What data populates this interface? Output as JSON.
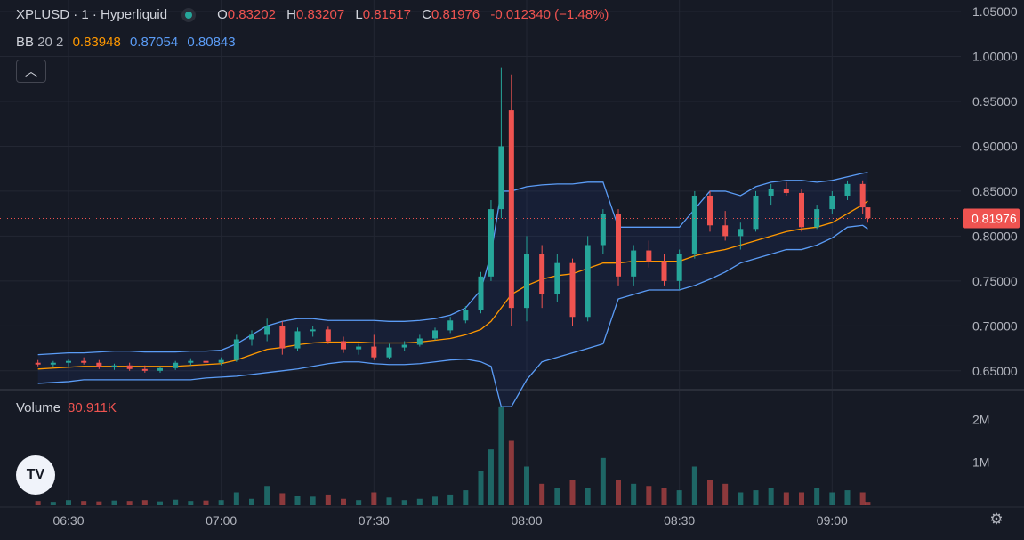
{
  "legend": {
    "symbol": "XPLUSD · 1 · Hyperliquid",
    "o_label": "O",
    "o": "0.83202",
    "h_label": "H",
    "h": "0.83207",
    "l_label": "L",
    "l": "0.81517",
    "c_label": "C",
    "c": "0.81976",
    "chg": "-0.012340 (−1.48%)"
  },
  "bb": {
    "label": "BB",
    "params": "20 2",
    "mid": "0.83948",
    "upper": "0.87054",
    "lower": "0.80843"
  },
  "collapse_icon": "chevron-up-icon",
  "volume": {
    "label": "Volume",
    "value": "80.911K"
  },
  "logo_text": "TV",
  "settings_icon": "gear-icon",
  "colors": {
    "up": "#26a69a",
    "down": "#ef5350",
    "bb_mid": "#ff9800",
    "bb_band": "#5b9cf6",
    "bg": "#161a25",
    "grid": "#232733"
  },
  "chart_data": {
    "type": "candlestick",
    "price_axis": {
      "ticks": [
        "1.05000",
        "1.00000",
        "0.95000",
        "0.90000",
        "0.85000",
        "0.80000",
        "0.75000",
        "0.70000",
        "0.65000"
      ],
      "range": [
        0.63,
        1.055
      ]
    },
    "time_axis": {
      "ticks": [
        "06:30",
        "07:00",
        "07:30",
        "08:00",
        "08:30",
        "09:00"
      ]
    },
    "volume_axis": {
      "ticks": [
        "2M",
        "1M"
      ]
    },
    "last_price": "0.81976",
    "candles": [
      {
        "t": "06:24",
        "o": 0.659,
        "h": 0.662,
        "l": 0.655,
        "c": 0.657
      },
      {
        "t": "06:27",
        "o": 0.657,
        "h": 0.661,
        "l": 0.654,
        "c": 0.659
      },
      {
        "t": "06:30",
        "o": 0.659,
        "h": 0.663,
        "l": 0.655,
        "c": 0.661
      },
      {
        "t": "06:33",
        "o": 0.661,
        "h": 0.665,
        "l": 0.657,
        "c": 0.659
      },
      {
        "t": "06:36",
        "o": 0.659,
        "h": 0.662,
        "l": 0.652,
        "c": 0.654
      },
      {
        "t": "06:39",
        "o": 0.654,
        "h": 0.658,
        "l": 0.651,
        "c": 0.656
      },
      {
        "t": "06:42",
        "o": 0.656,
        "h": 0.659,
        "l": 0.65,
        "c": 0.652
      },
      {
        "t": "06:45",
        "o": 0.652,
        "h": 0.656,
        "l": 0.648,
        "c": 0.65
      },
      {
        "t": "06:48",
        "o": 0.65,
        "h": 0.655,
        "l": 0.648,
        "c": 0.653
      },
      {
        "t": "06:51",
        "o": 0.653,
        "h": 0.661,
        "l": 0.651,
        "c": 0.659
      },
      {
        "t": "06:54",
        "o": 0.659,
        "h": 0.664,
        "l": 0.656,
        "c": 0.661
      },
      {
        "t": "06:57",
        "o": 0.661,
        "h": 0.664,
        "l": 0.657,
        "c": 0.659
      },
      {
        "t": "07:00",
        "o": 0.659,
        "h": 0.665,
        "l": 0.656,
        "c": 0.662
      },
      {
        "t": "07:03",
        "o": 0.662,
        "h": 0.69,
        "l": 0.66,
        "c": 0.685
      },
      {
        "t": "07:06",
        "o": 0.685,
        "h": 0.695,
        "l": 0.678,
        "c": 0.69
      },
      {
        "t": "07:09",
        "o": 0.69,
        "h": 0.708,
        "l": 0.683,
        "c": 0.7
      },
      {
        "t": "07:12",
        "o": 0.7,
        "h": 0.705,
        "l": 0.668,
        "c": 0.675
      },
      {
        "t": "07:15",
        "o": 0.675,
        "h": 0.698,
        "l": 0.672,
        "c": 0.694
      },
      {
        "t": "07:18",
        "o": 0.694,
        "h": 0.7,
        "l": 0.688,
        "c": 0.696
      },
      {
        "t": "07:21",
        "o": 0.696,
        "h": 0.699,
        "l": 0.68,
        "c": 0.683
      },
      {
        "t": "07:24",
        "o": 0.683,
        "h": 0.688,
        "l": 0.67,
        "c": 0.674
      },
      {
        "t": "07:27",
        "o": 0.674,
        "h": 0.68,
        "l": 0.668,
        "c": 0.677
      },
      {
        "t": "07:30",
        "o": 0.677,
        "h": 0.69,
        "l": 0.662,
        "c": 0.665
      },
      {
        "t": "07:33",
        "o": 0.665,
        "h": 0.68,
        "l": 0.663,
        "c": 0.676
      },
      {
        "t": "07:36",
        "o": 0.676,
        "h": 0.683,
        "l": 0.672,
        "c": 0.679
      },
      {
        "t": "07:39",
        "o": 0.679,
        "h": 0.69,
        "l": 0.677,
        "c": 0.686
      },
      {
        "t": "07:42",
        "o": 0.686,
        "h": 0.698,
        "l": 0.684,
        "c": 0.695
      },
      {
        "t": "07:45",
        "o": 0.695,
        "h": 0.71,
        "l": 0.692,
        "c": 0.706
      },
      {
        "t": "07:48",
        "o": 0.706,
        "h": 0.722,
        "l": 0.703,
        "c": 0.718
      },
      {
        "t": "07:51",
        "o": 0.718,
        "h": 0.76,
        "l": 0.714,
        "c": 0.755
      },
      {
        "t": "07:53",
        "o": 0.755,
        "h": 0.84,
        "l": 0.75,
        "c": 0.83
      },
      {
        "t": "07:55",
        "o": 0.83,
        "h": 0.988,
        "l": 0.82,
        "c": 0.9
      },
      {
        "t": "07:57",
        "o": 0.94,
        "h": 0.98,
        "l": 0.7,
        "c": 0.72
      },
      {
        "t": "08:00",
        "o": 0.72,
        "h": 0.8,
        "l": 0.705,
        "c": 0.78
      },
      {
        "t": "08:03",
        "o": 0.78,
        "h": 0.79,
        "l": 0.72,
        "c": 0.735
      },
      {
        "t": "08:06",
        "o": 0.735,
        "h": 0.78,
        "l": 0.727,
        "c": 0.77
      },
      {
        "t": "08:09",
        "o": 0.77,
        "h": 0.775,
        "l": 0.7,
        "c": 0.71
      },
      {
        "t": "08:12",
        "o": 0.71,
        "h": 0.8,
        "l": 0.705,
        "c": 0.79
      },
      {
        "t": "08:15",
        "o": 0.79,
        "h": 0.83,
        "l": 0.78,
        "c": 0.825
      },
      {
        "t": "08:18",
        "o": 0.825,
        "h": 0.83,
        "l": 0.745,
        "c": 0.755
      },
      {
        "t": "08:21",
        "o": 0.755,
        "h": 0.79,
        "l": 0.745,
        "c": 0.784
      },
      {
        "t": "08:24",
        "o": 0.784,
        "h": 0.795,
        "l": 0.765,
        "c": 0.772
      },
      {
        "t": "08:27",
        "o": 0.772,
        "h": 0.78,
        "l": 0.745,
        "c": 0.75
      },
      {
        "t": "08:30",
        "o": 0.75,
        "h": 0.785,
        "l": 0.74,
        "c": 0.78
      },
      {
        "t": "08:33",
        "o": 0.78,
        "h": 0.85,
        "l": 0.775,
        "c": 0.845
      },
      {
        "t": "08:36",
        "o": 0.845,
        "h": 0.85,
        "l": 0.805,
        "c": 0.812
      },
      {
        "t": "08:39",
        "o": 0.812,
        "h": 0.828,
        "l": 0.795,
        "c": 0.8
      },
      {
        "t": "08:42",
        "o": 0.8,
        "h": 0.815,
        "l": 0.785,
        "c": 0.808
      },
      {
        "t": "08:45",
        "o": 0.808,
        "h": 0.85,
        "l": 0.805,
        "c": 0.845
      },
      {
        "t": "08:48",
        "o": 0.845,
        "h": 0.858,
        "l": 0.835,
        "c": 0.852
      },
      {
        "t": "08:51",
        "o": 0.852,
        "h": 0.86,
        "l": 0.845,
        "c": 0.848
      },
      {
        "t": "08:54",
        "o": 0.848,
        "h": 0.852,
        "l": 0.805,
        "c": 0.81
      },
      {
        "t": "08:57",
        "o": 0.81,
        "h": 0.835,
        "l": 0.808,
        "c": 0.83
      },
      {
        "t": "09:00",
        "o": 0.83,
        "h": 0.85,
        "l": 0.825,
        "c": 0.845
      },
      {
        "t": "09:03",
        "o": 0.845,
        "h": 0.862,
        "l": 0.84,
        "c": 0.858
      },
      {
        "t": "09:06",
        "o": 0.858,
        "h": 0.862,
        "l": 0.825,
        "c": 0.832
      },
      {
        "t": "09:07",
        "o": 0.832,
        "h": 0.832,
        "l": 0.815,
        "c": 0.82
      }
    ],
    "bollinger": {
      "upper": [
        0.668,
        0.669,
        0.67,
        0.67,
        0.671,
        0.672,
        0.672,
        0.671,
        0.671,
        0.671,
        0.672,
        0.672,
        0.673,
        0.68,
        0.69,
        0.7,
        0.705,
        0.708,
        0.708,
        0.706,
        0.706,
        0.706,
        0.706,
        0.705,
        0.705,
        0.706,
        0.708,
        0.712,
        0.72,
        0.74,
        0.78,
        0.85,
        0.85,
        0.855,
        0.857,
        0.858,
        0.858,
        0.86,
        0.86,
        0.81,
        0.81,
        0.81,
        0.81,
        0.81,
        0.83,
        0.85,
        0.85,
        0.845,
        0.855,
        0.86,
        0.862,
        0.862,
        0.86,
        0.862,
        0.866,
        0.87,
        0.871
      ],
      "middle": [
        0.652,
        0.653,
        0.654,
        0.655,
        0.655,
        0.655,
        0.655,
        0.655,
        0.655,
        0.655,
        0.656,
        0.657,
        0.658,
        0.662,
        0.668,
        0.674,
        0.676,
        0.679,
        0.681,
        0.682,
        0.682,
        0.682,
        0.681,
        0.681,
        0.681,
        0.682,
        0.684,
        0.686,
        0.69,
        0.696,
        0.705,
        0.72,
        0.735,
        0.745,
        0.752,
        0.756,
        0.758,
        0.764,
        0.77,
        0.77,
        0.772,
        0.772,
        0.772,
        0.772,
        0.778,
        0.782,
        0.785,
        0.79,
        0.795,
        0.8,
        0.805,
        0.808,
        0.81,
        0.815,
        0.825,
        0.835,
        0.839
      ],
      "lower": [
        0.636,
        0.637,
        0.638,
        0.64,
        0.64,
        0.64,
        0.64,
        0.64,
        0.64,
        0.64,
        0.64,
        0.642,
        0.643,
        0.644,
        0.646,
        0.648,
        0.65,
        0.652,
        0.655,
        0.658,
        0.66,
        0.66,
        0.658,
        0.657,
        0.657,
        0.658,
        0.66,
        0.662,
        0.663,
        0.66,
        0.655,
        0.61,
        0.61,
        0.64,
        0.66,
        0.665,
        0.67,
        0.675,
        0.68,
        0.73,
        0.735,
        0.74,
        0.74,
        0.74,
        0.745,
        0.752,
        0.76,
        0.77,
        0.775,
        0.78,
        0.785,
        0.785,
        0.79,
        0.798,
        0.81,
        0.812,
        0.808
      ]
    },
    "volumes": [
      0.1,
      0.08,
      0.12,
      0.1,
      0.09,
      0.11,
      0.1,
      0.12,
      0.09,
      0.13,
      0.1,
      0.11,
      0.12,
      0.3,
      0.15,
      0.45,
      0.28,
      0.22,
      0.2,
      0.25,
      0.15,
      0.12,
      0.3,
      0.18,
      0.12,
      0.15,
      0.2,
      0.25,
      0.35,
      0.8,
      1.3,
      2.3,
      1.5,
      0.9,
      0.5,
      0.4,
      0.6,
      0.4,
      1.1,
      0.6,
      0.5,
      0.45,
      0.4,
      0.35,
      0.9,
      0.6,
      0.5,
      0.3,
      0.35,
      0.4,
      0.3,
      0.3,
      0.4,
      0.3,
      0.35,
      0.3,
      0.08
    ]
  }
}
